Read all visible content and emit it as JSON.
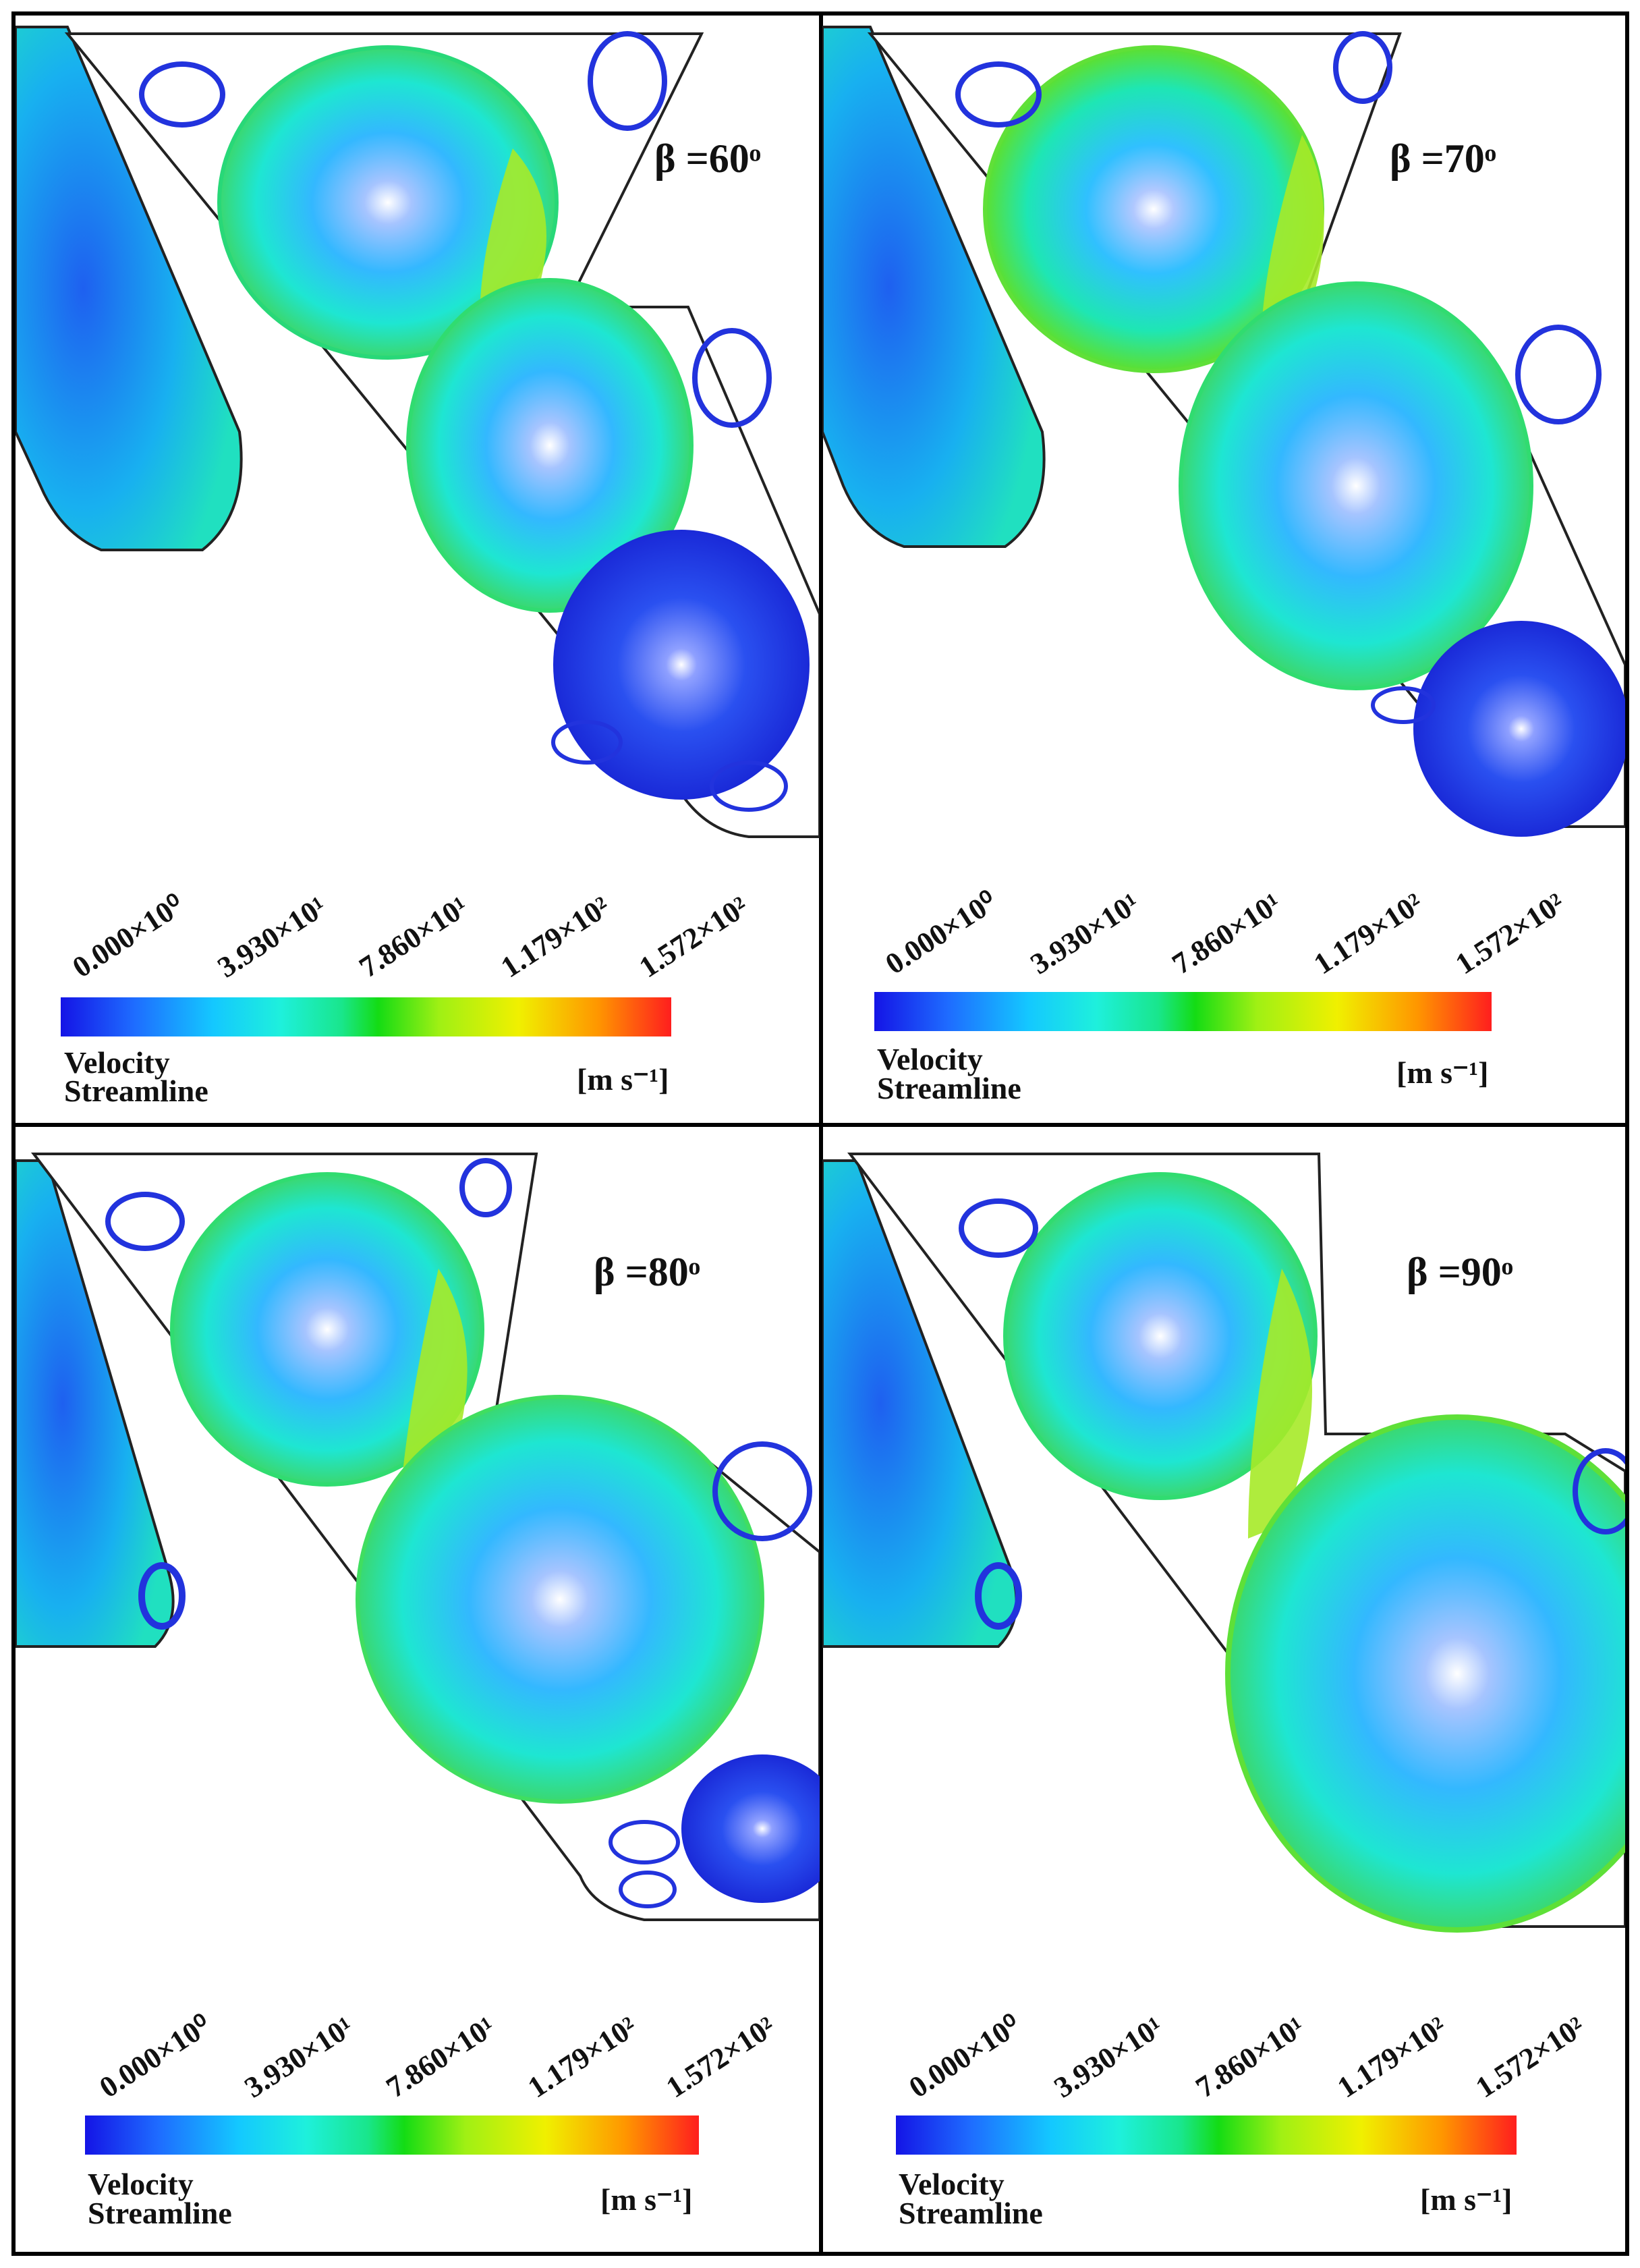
{
  "figure": {
    "panels": [
      {
        "beta_label": "β =60ᵒ",
        "scale_ticks": [
          "0.000×10⁰",
          "3.930×10¹",
          "7.860×10¹",
          "1.179×10²",
          "1.572×10²"
        ],
        "legend_title_line1": "Velocity",
        "legend_title_line2": "Streamline",
        "units": "[m s⁻¹]"
      },
      {
        "beta_label": "β =70ᵒ",
        "scale_ticks": [
          "0.000×10⁰",
          "3.930×10¹",
          "7.860×10¹",
          "1.179×10²",
          "1.572×10²"
        ],
        "legend_title_line1": "Velocity",
        "legend_title_line2": "Streamline",
        "units": "[m s⁻¹]"
      },
      {
        "beta_label": "β =80ᵒ",
        "scale_ticks": [
          "0.000×10⁰",
          "3.930×10¹",
          "7.860×10¹",
          "1.179×10²",
          "1.572×10²"
        ],
        "legend_title_line1": "Velocity",
        "legend_title_line2": "Streamline",
        "units": "[m s⁻¹]"
      },
      {
        "beta_label": "β =90ᵒ",
        "scale_ticks": [
          "0.000×10⁰",
          "3.930×10¹",
          "7.860×10¹",
          "1.179×10²",
          "1.572×10²"
        ],
        "legend_title_line1": "Velocity",
        "legend_title_line2": "Streamline",
        "units": "[m s⁻¹]"
      }
    ],
    "colormap": [
      "#1414e6",
      "#1e6cff",
      "#14c8ff",
      "#1ef0dc",
      "#19e68c",
      "#14dc14",
      "#a0f014",
      "#f0f000",
      "#ff9600",
      "#ff1e1e"
    ],
    "colors": {
      "border": "#000000",
      "wall": "#222222",
      "cold_stream": "#2233dd",
      "mid_stream": "#22cfe6",
      "fast_stream": "#66e040"
    }
  }
}
